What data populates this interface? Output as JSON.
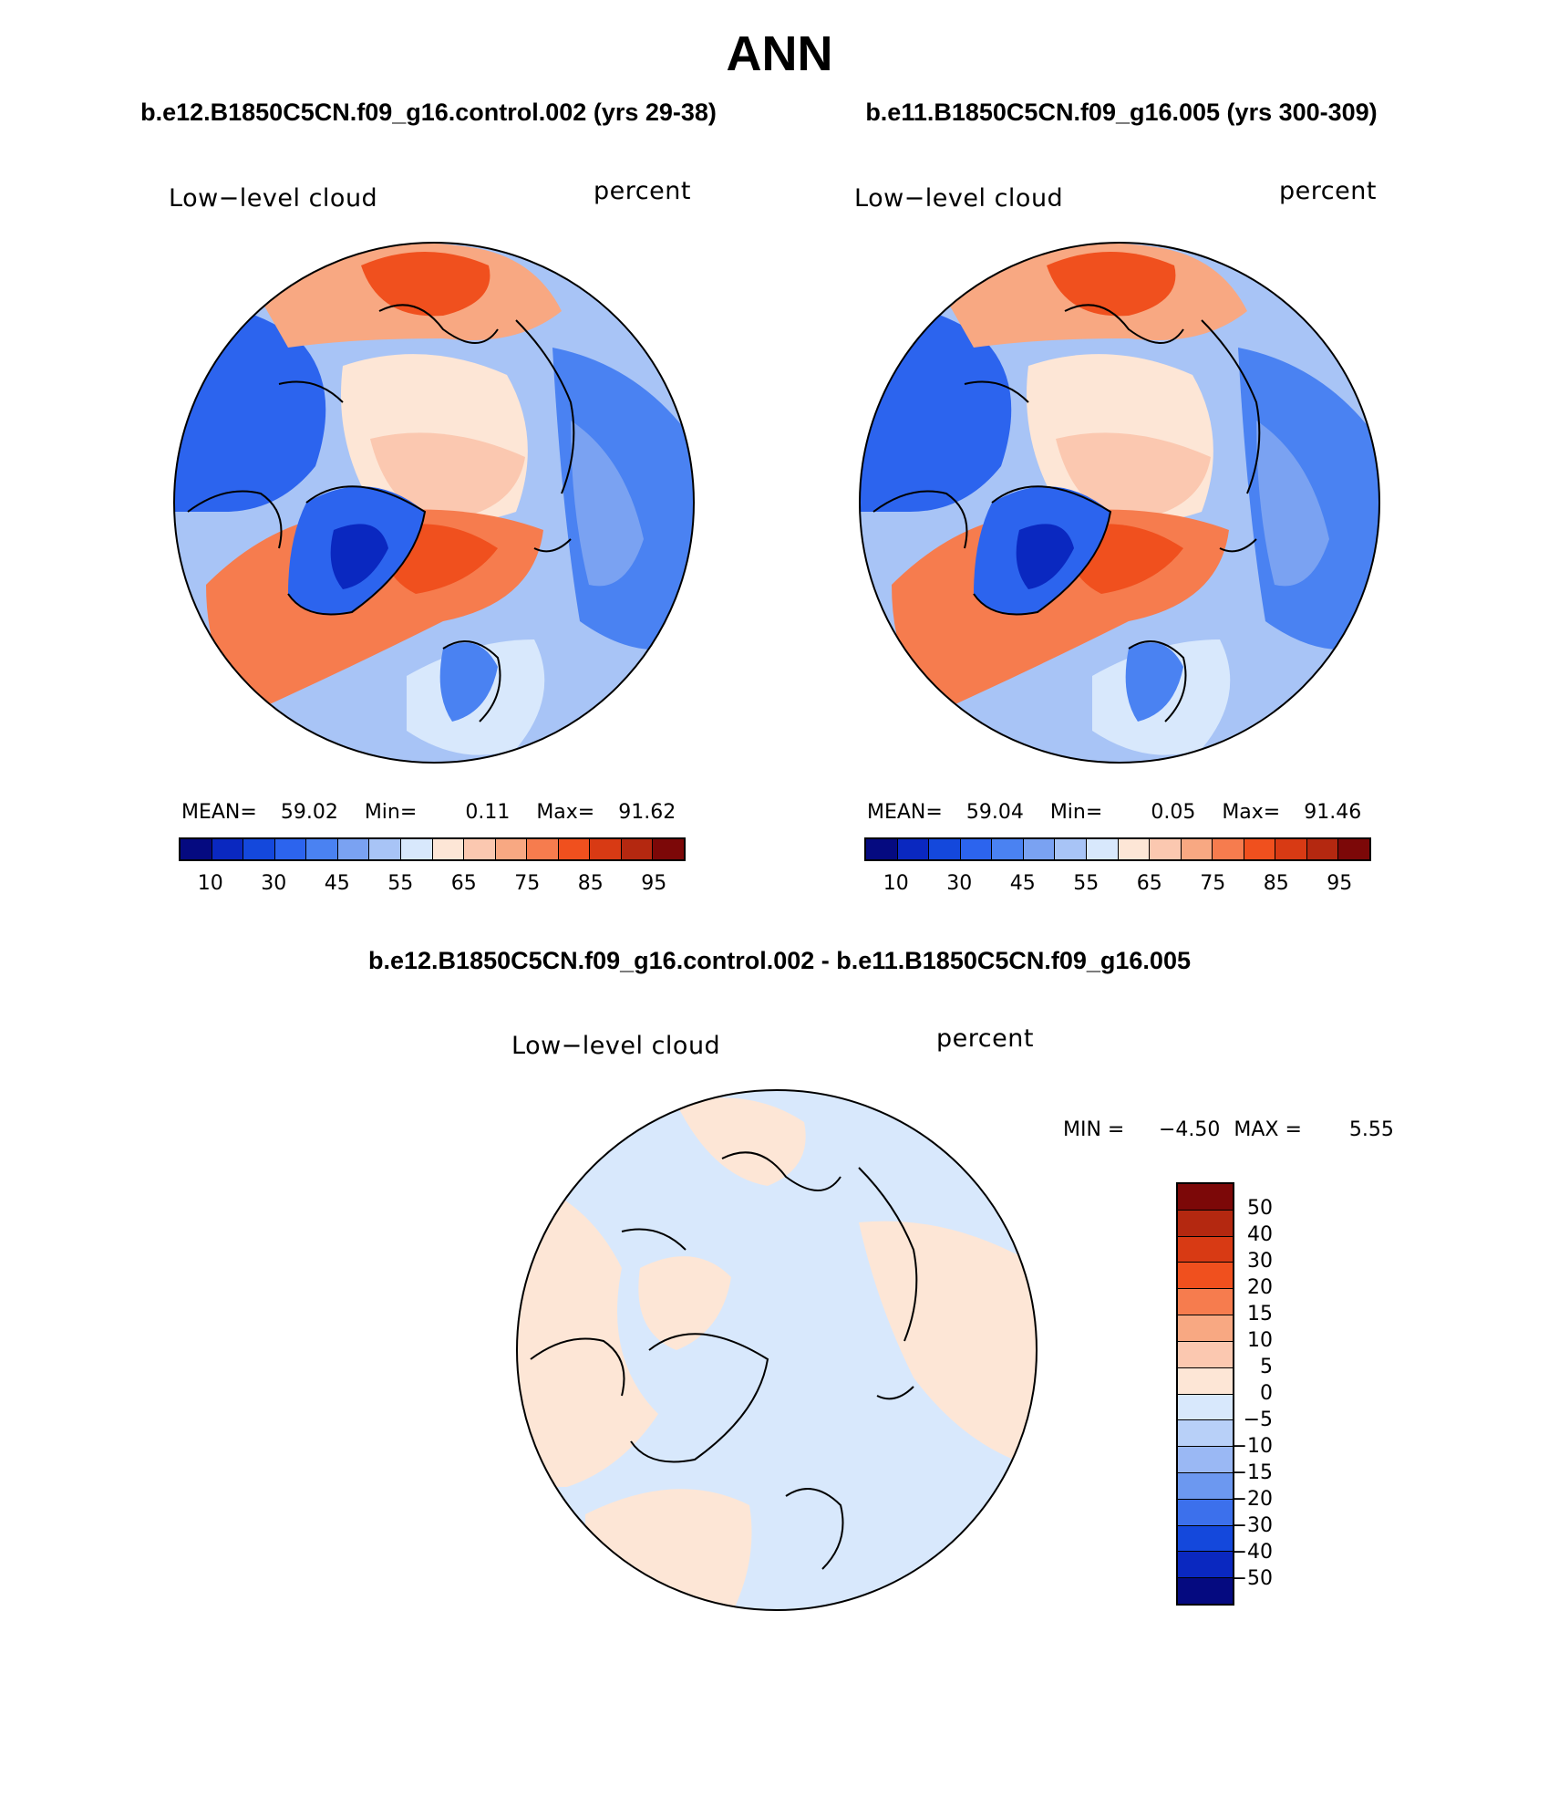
{
  "title": "ANN",
  "colors": {
    "abs_scale": [
      "#050a80",
      "#0a28c0",
      "#1448dc",
      "#2c64ee",
      "#4a82f2",
      "#7aa2f2",
      "#a8c4f6",
      "#d8e8fc",
      "#fde6d6",
      "#fbc8b0",
      "#f8a882",
      "#f67c4e",
      "#f0501e",
      "#d83a14",
      "#b42810",
      "#7c0808"
    ],
    "diff_scale": [
      "#7c0808",
      "#b42810",
      "#d83a14",
      "#f0501e",
      "#f67c4e",
      "#f8a882",
      "#fbc8b0",
      "#fde6d6",
      "#d8e8fc",
      "#b8d0f8",
      "#9ab8f4",
      "#6c98f0",
      "#3c70ec",
      "#1448dc",
      "#0a28c0",
      "#050a80"
    ]
  },
  "panels": [
    {
      "case_title": "b.e12.B1850C5CN.f09_g16.control.002 (yrs 29-38)",
      "var_label": "Low−level cloud",
      "units": "percent",
      "mean_label": "MEAN=",
      "mean": "59.02",
      "min_label": "Min=",
      "min": "0.11",
      "max_label": "Max=",
      "max": "91.62",
      "ticks": [
        "10",
        "30",
        "45",
        "55",
        "65",
        "75",
        "85",
        "95"
      ]
    },
    {
      "case_title": "b.e11.B1850C5CN.f09_g16.005 (yrs 300-309)",
      "var_label": "Low−level cloud",
      "units": "percent",
      "mean_label": "MEAN=",
      "mean": "59.04",
      "min_label": "Min=",
      "min": "0.05",
      "max_label": "Max=",
      "max": "91.46",
      "ticks": [
        "10",
        "30",
        "45",
        "55",
        "65",
        "75",
        "85",
        "95"
      ]
    }
  ],
  "diff": {
    "case_title": "b.e12.B1850C5CN.f09_g16.control.002 - b.e11.B1850C5CN.f09_g16.005",
    "var_label": "Low−level cloud",
    "units": "percent",
    "min_label": "MIN =",
    "min": "−4.50",
    "max_label": "MAX =",
    "max": "5.55",
    "ticks": [
      "50",
      "40",
      "30",
      "20",
      "15",
      "10",
      "5",
      "0",
      "−5",
      "−10",
      "−15",
      "−20",
      "−30",
      "−40",
      "−50"
    ]
  },
  "chart_data": [
    {
      "type": "heatmap",
      "title": "Low−level cloud",
      "subtitle": "b.e12.B1850C5CN.f09_g16.control.002 (yrs 29-38)",
      "units": "percent",
      "projection": "north polar stereographic",
      "stats": {
        "mean": 59.02,
        "min": 0.11,
        "max": 91.62
      },
      "contour_levels": [
        10,
        20,
        30,
        40,
        45,
        50,
        55,
        60,
        65,
        70,
        75,
        80,
        85,
        90,
        95
      ],
      "colorbar_ticks": [
        10,
        30,
        45,
        55,
        65,
        75,
        85,
        95
      ]
    },
    {
      "type": "heatmap",
      "title": "Low−level cloud",
      "subtitle": "b.e11.B1850C5CN.f09_g16.005 (yrs 300-309)",
      "units": "percent",
      "projection": "north polar stereographic",
      "stats": {
        "mean": 59.04,
        "min": 0.05,
        "max": 91.46
      },
      "contour_levels": [
        10,
        20,
        30,
        40,
        45,
        50,
        55,
        60,
        65,
        70,
        75,
        80,
        85,
        90,
        95
      ],
      "colorbar_ticks": [
        10,
        30,
        45,
        55,
        65,
        75,
        85,
        95
      ]
    },
    {
      "type": "heatmap",
      "title": "Low−level cloud",
      "subtitle": "b.e12.B1850C5CN.f09_g16.control.002 - b.e11.B1850C5CN.f09_g16.005",
      "units": "percent",
      "projection": "north polar stereographic",
      "stats": {
        "min": -4.5,
        "max": 5.55
      },
      "contour_levels": [
        -50,
        -40,
        -30,
        -20,
        -15,
        -10,
        -5,
        0,
        5,
        10,
        15,
        20,
        30,
        40,
        50
      ],
      "colorbar_ticks": [
        50,
        40,
        30,
        20,
        15,
        10,
        5,
        0,
        -5,
        -10,
        -15,
        -20,
        -30,
        -40,
        -50
      ]
    }
  ]
}
